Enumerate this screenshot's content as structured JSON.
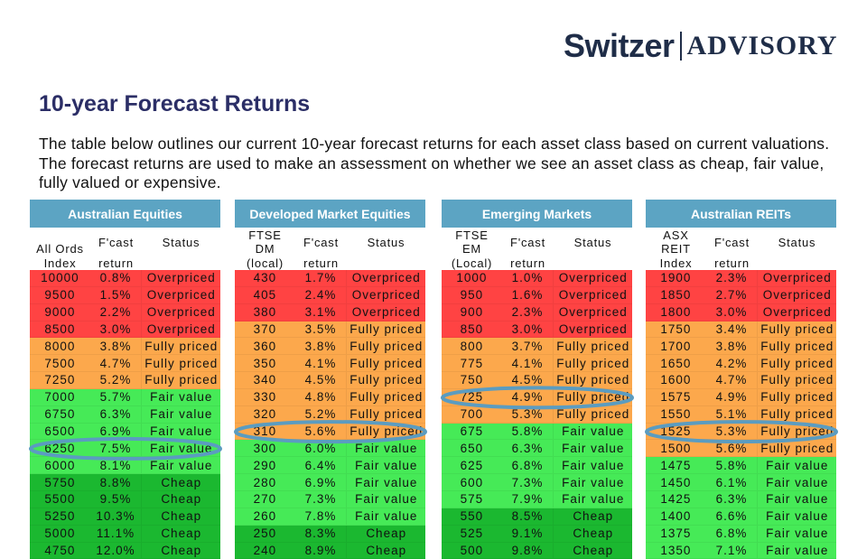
{
  "logo": {
    "brand": "Switzer",
    "sub": "ADVISORY"
  },
  "title": "10-year Forecast Returns",
  "intro": "The table below outlines our current 10-year forecast returns for each asset class based on current valuations. The forecast returns are used to make an assessment on whether we see an asset class as cheap, fair value, fully valued or expensive.",
  "colors": {
    "Overpriced": "#ff4343",
    "Fully priced": "#fca84c",
    "Fair value": "#46ea57",
    "Cheap": "#1bb830",
    "header": "#5ca4c3",
    "highlight": "#5b9cc0"
  },
  "tables": [
    {
      "title": "Australian Equities",
      "col1": [
        "All Ords",
        "Index"
      ],
      "col2": [
        "F'cast",
        "return"
      ],
      "col3": "Status",
      "highlight_row": 11,
      "rows": [
        [
          "10000",
          "0.8%",
          "Overpriced"
        ],
        [
          "9500",
          "1.5%",
          "Overpriced"
        ],
        [
          "9000",
          "2.2%",
          "Overpriced"
        ],
        [
          "8500",
          "3.0%",
          "Overpriced"
        ],
        [
          "8000",
          "3.8%",
          "Fully priced"
        ],
        [
          "7500",
          "4.7%",
          "Fully priced"
        ],
        [
          "7250",
          "5.2%",
          "Fully priced"
        ],
        [
          "7000",
          "5.7%",
          "Fair value"
        ],
        [
          "6750",
          "6.3%",
          "Fair value"
        ],
        [
          "6500",
          "6.9%",
          "Fair value"
        ],
        [
          "6250",
          "7.5%",
          "Fair value"
        ],
        [
          "6000",
          "8.1%",
          "Fair value"
        ],
        [
          "5750",
          "8.8%",
          "Cheap"
        ],
        [
          "5500",
          "9.5%",
          "Cheap"
        ],
        [
          "5250",
          "10.3%",
          "Cheap"
        ],
        [
          "5000",
          "11.1%",
          "Cheap"
        ],
        [
          "4750",
          "12.0%",
          "Cheap"
        ]
      ]
    },
    {
      "title": "Developed Market Equities",
      "col1": [
        "FTSE",
        "DM",
        "(local)"
      ],
      "col2": [
        "F'cast",
        "return"
      ],
      "col3": "Status",
      "highlight_row": 10,
      "rows": [
        [
          "430",
          "1.7%",
          "Overpriced"
        ],
        [
          "405",
          "2.4%",
          "Overpriced"
        ],
        [
          "380",
          "3.1%",
          "Overpriced"
        ],
        [
          "370",
          "3.5%",
          "Fully priced"
        ],
        [
          "360",
          "3.8%",
          "Fully priced"
        ],
        [
          "350",
          "4.1%",
          "Fully priced"
        ],
        [
          "340",
          "4.5%",
          "Fully priced"
        ],
        [
          "330",
          "4.8%",
          "Fully priced"
        ],
        [
          "320",
          "5.2%",
          "Fully priced"
        ],
        [
          "310",
          "5.6%",
          "Fully priced"
        ],
        [
          "300",
          "6.0%",
          "Fair value"
        ],
        [
          "290",
          "6.4%",
          "Fair value"
        ],
        [
          "280",
          "6.9%",
          "Fair value"
        ],
        [
          "270",
          "7.3%",
          "Fair value"
        ],
        [
          "260",
          "7.8%",
          "Fair value"
        ],
        [
          "250",
          "8.3%",
          "Cheap"
        ],
        [
          "240",
          "8.9%",
          "Cheap"
        ]
      ]
    },
    {
      "title": "Emerging Markets",
      "col1": [
        "FTSE",
        "EM",
        "(Local)"
      ],
      "col2": [
        "F'cast",
        "return"
      ],
      "col3": "Status",
      "highlight_row": 8,
      "rows": [
        [
          "1000",
          "1.0%",
          "Overpriced"
        ],
        [
          "950",
          "1.6%",
          "Overpriced"
        ],
        [
          "900",
          "2.3%",
          "Overpriced"
        ],
        [
          "850",
          "3.0%",
          "Overpriced"
        ],
        [
          "800",
          "3.7%",
          "Fully priced"
        ],
        [
          "775",
          "4.1%",
          "Fully priced"
        ],
        [
          "750",
          "4.5%",
          "Fully priced"
        ],
        [
          "725",
          "4.9%",
          "Fully priced"
        ],
        [
          "700",
          "5.3%",
          "Fully priced"
        ],
        [
          "675",
          "5.8%",
          "Fair value"
        ],
        [
          "650",
          "6.3%",
          "Fair value"
        ],
        [
          "625",
          "6.8%",
          "Fair value"
        ],
        [
          "600",
          "7.3%",
          "Fair value"
        ],
        [
          "575",
          "7.9%",
          "Fair value"
        ],
        [
          "550",
          "8.5%",
          "Cheap"
        ],
        [
          "525",
          "9.1%",
          "Cheap"
        ],
        [
          "500",
          "9.8%",
          "Cheap"
        ]
      ]
    },
    {
      "title": "Australian REITs",
      "col1": [
        "ASX",
        "REIT",
        "Index"
      ],
      "col2": [
        "F'cast",
        "return"
      ],
      "col3": "Status",
      "highlight_row": 10,
      "rows": [
        [
          "1900",
          "2.3%",
          "Overpriced"
        ],
        [
          "1850",
          "2.7%",
          "Overpriced"
        ],
        [
          "1800",
          "3.0%",
          "Overpriced"
        ],
        [
          "1750",
          "3.4%",
          "Fully priced"
        ],
        [
          "1700",
          "3.8%",
          "Fully priced"
        ],
        [
          "1650",
          "4.2%",
          "Fully priced"
        ],
        [
          "1600",
          "4.7%",
          "Fully priced"
        ],
        [
          "1575",
          "4.9%",
          "Fully priced"
        ],
        [
          "1550",
          "5.1%",
          "Fully priced"
        ],
        [
          "1525",
          "5.3%",
          "Fully priced"
        ],
        [
          "1500",
          "5.6%",
          "Fully priced"
        ],
        [
          "1475",
          "5.8%",
          "Fair value"
        ],
        [
          "1450",
          "6.1%",
          "Fair value"
        ],
        [
          "1425",
          "6.3%",
          "Fair value"
        ],
        [
          "1400",
          "6.6%",
          "Fair value"
        ],
        [
          "1375",
          "6.8%",
          "Fair value"
        ],
        [
          "1350",
          "7.1%",
          "Fair value"
        ]
      ]
    }
  ]
}
